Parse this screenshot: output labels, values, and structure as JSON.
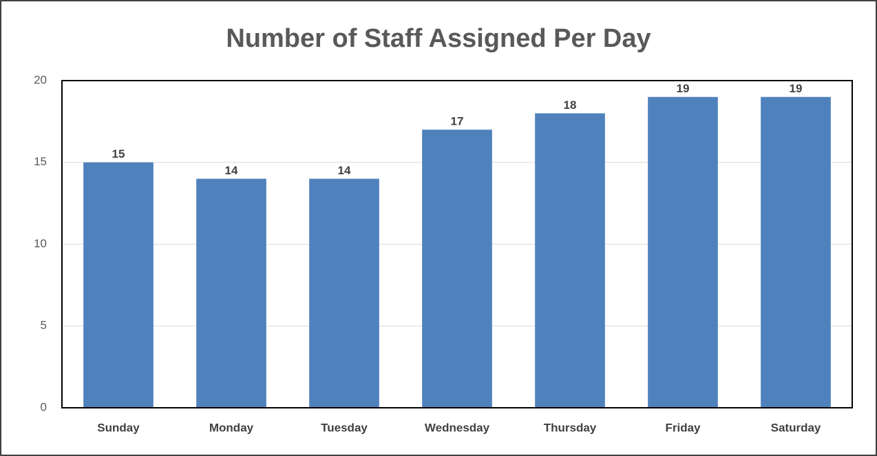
{
  "chart_data": {
    "type": "bar",
    "title": "Number of Staff Assigned Per Day",
    "categories": [
      "Sunday",
      "Monday",
      "Tuesday",
      "Wednesday",
      "Thursday",
      "Friday",
      "Saturday"
    ],
    "values": [
      15,
      14,
      14,
      17,
      18,
      19,
      19
    ],
    "color": "#4f81bd",
    "ylim": [
      0,
      20
    ],
    "yticks": [
      0,
      5,
      10,
      15,
      20
    ],
    "grid": true
  }
}
